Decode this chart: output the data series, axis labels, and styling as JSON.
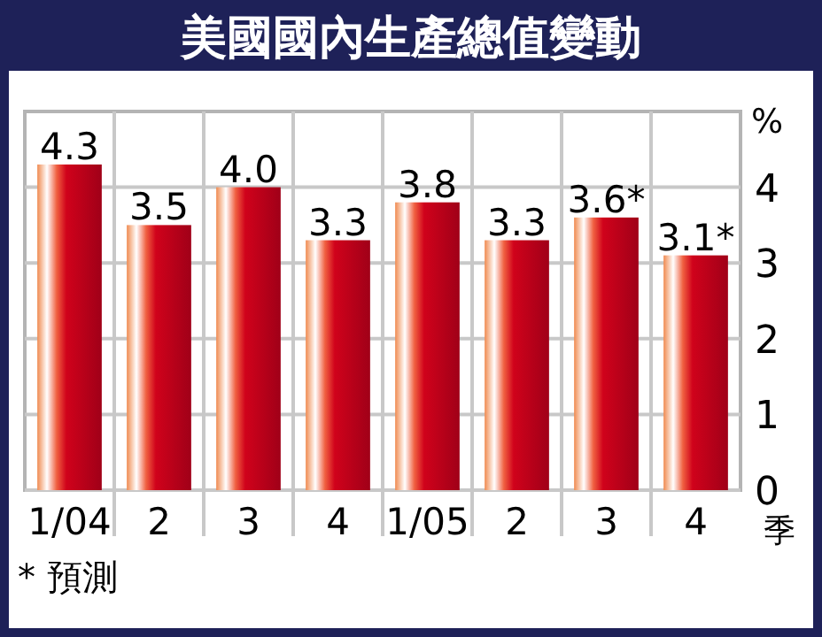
{
  "chart_data": {
    "type": "bar",
    "title": "美國國內生產總值變動",
    "categories": [
      "1/04",
      "2",
      "3",
      "4",
      "1/05",
      "2",
      "3",
      "4"
    ],
    "values": [
      4.3,
      3.5,
      4.0,
      3.3,
      3.8,
      3.3,
      3.6,
      3.1
    ],
    "value_labels": [
      "4.3",
      "3.5",
      "4.0",
      "3.3",
      "3.8",
      "3.3",
      "3.6*",
      "3.1*"
    ],
    "color": "#d0021b",
    "xlabel": "季",
    "ylabel": "%",
    "ylim": [
      0,
      5
    ],
    "yticks": [
      0,
      1,
      2,
      3,
      4
    ],
    "grid": true,
    "annotations": [
      "* 預測"
    ]
  }
}
